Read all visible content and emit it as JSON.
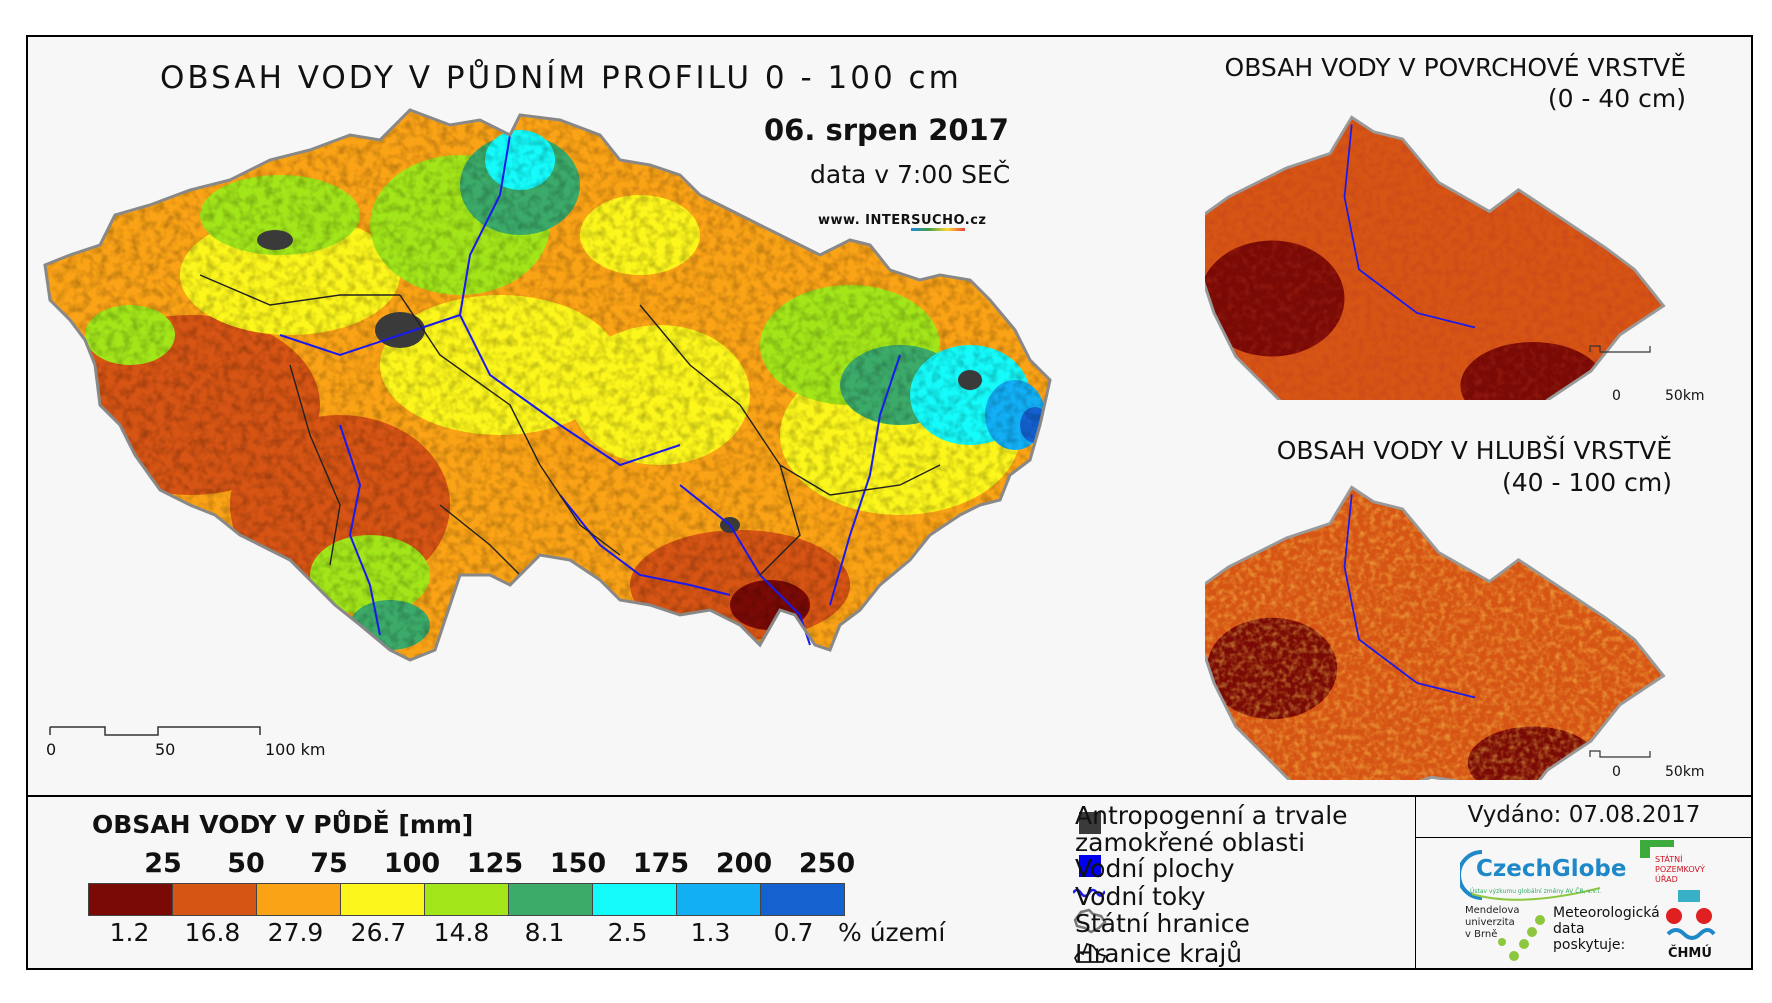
{
  "main_title": "OBSAH VODY V PŮDNÍM PROFILU 0 - 100 cm",
  "date": "06. srpen 2017",
  "data_time": "data v 7:00 SEČ",
  "website": {
    "prefix": "www. INTER",
    "highlight": "SUCHO",
    "suffix": ".cz"
  },
  "inset_top": {
    "title": "OBSAH VODY V POVRCHOVÉ VRSTVĚ",
    "range": "(0 - 40 cm)",
    "scale": [
      "0",
      "50km"
    ]
  },
  "inset_bottom": {
    "title": "OBSAH VODY V HLUBŠÍ VRSTVĚ",
    "range": "(40 - 100 cm)",
    "scale": [
      "0",
      "50km"
    ]
  },
  "main_scale": [
    "0",
    "50",
    "100 km"
  ],
  "legend": {
    "title": "OBSAH VODY V PŮDĚ [mm]",
    "thresholds": [
      "25",
      "50",
      "75",
      "100",
      "125",
      "150",
      "175",
      "200",
      "250"
    ],
    "colors": [
      "#7a0a05",
      "#d65414",
      "#fba316",
      "#fcf61c",
      "#a2e61a",
      "#3cab6a",
      "#15fbfb",
      "#12aff5",
      "#1362d0"
    ],
    "percentages": [
      "1.2",
      "16.8",
      "27.9",
      "26.7",
      "14.8",
      "8.1",
      "2.5",
      "1.3",
      "0.7"
    ],
    "pct_unit": "% území"
  },
  "symbols": [
    {
      "label1": "Antropogenní a trvale",
      "label2": "zamokřené oblasti",
      "icon": "dark-gray-square",
      "color": "#3a3a3a"
    },
    {
      "label1": "Vodní plochy",
      "icon": "blue-square",
      "color": "#0000ee"
    },
    {
      "label1": "Vodní toky",
      "icon": "river-line",
      "color": "#1a1aee"
    },
    {
      "label1": "Státní hranice",
      "icon": "country-outline"
    },
    {
      "label1": "Hranice krajů",
      "icon": "region-outline"
    }
  ],
  "issued": "Vydáno: 07.08.2017",
  "logos": {
    "czechglobe": "CzechGlobe",
    "czechglobe_sub": "Ústav výzkumu globální změny AV ČR, v.v.i.",
    "spu": [
      "STÁTNÍ",
      "POZEMKOVÝ",
      "ÚŘAD"
    ],
    "mendelu": [
      "Mendelova",
      "univerzita",
      "v Brně"
    ],
    "meteo": [
      "Meteorologická",
      "data",
      "poskytuje:"
    ],
    "chmu": "ČHMÚ"
  }
}
